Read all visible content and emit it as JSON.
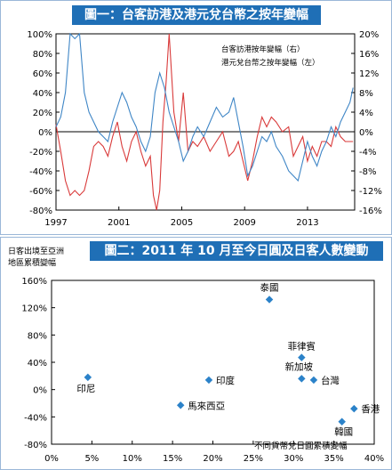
{
  "chart1": {
    "title": "圖一：台客訪港及港元兌台幣之按年變幅",
    "legend_right": "台客訪港按年變幅（右）",
    "legend_left": "港元兌台幣之按年變幅（左）"
  },
  "chart2": {
    "title": "圖二：2011 年 10 月至今日圓及日客人數變動",
    "ylabel_line1": "日客出境至亞洲",
    "ylabel_line2": "地區累積變幅",
    "xlabel": "不同貨幣兌日圓累積變幅"
  },
  "chart_data": [
    {
      "type": "line",
      "title": "圖一：台客訪港及港元兌台幣之按年變幅",
      "x_ticks": [
        "1997",
        "2001",
        "2005",
        "2009",
        "2013"
      ],
      "xlim": [
        1997,
        2016
      ],
      "y_left_ticks": [
        "100%",
        "80%",
        "60%",
        "40%",
        "20%",
        "0%",
        "-20%",
        "-40%",
        "-60%",
        "-80%"
      ],
      "y_left_lim": [
        -80,
        100
      ],
      "y_right_ticks": [
        "20%",
        "16%",
        "12%",
        "8%",
        "4%",
        "0%",
        "-4%",
        "-8%",
        "-12%",
        "-16%"
      ],
      "y_right_lim": [
        -16,
        20
      ],
      "colors": {
        "visitors": "#d93a3a",
        "fx": "#3f86c6"
      },
      "series": [
        {
          "name": "台客訪港按年變幅（右）",
          "axis": "right",
          "points": [
            [
              1997.0,
              1.5
            ],
            [
              1997.3,
              -4
            ],
            [
              1997.6,
              -10
            ],
            [
              1997.9,
              -13
            ],
            [
              1998.2,
              -12
            ],
            [
              1998.5,
              -13
            ],
            [
              1998.8,
              -12
            ],
            [
              1999.1,
              -8
            ],
            [
              1999.4,
              -3
            ],
            [
              1999.7,
              -2
            ],
            [
              2000.0,
              -3
            ],
            [
              2000.3,
              -5
            ],
            [
              2000.6,
              -1
            ],
            [
              2000.9,
              2
            ],
            [
              2001.2,
              -3
            ],
            [
              2001.5,
              -6
            ],
            [
              2001.8,
              -2
            ],
            [
              2002.1,
              0
            ],
            [
              2002.4,
              -4
            ],
            [
              2002.7,
              -7
            ],
            [
              2003.0,
              -5
            ],
            [
              2003.2,
              -13
            ],
            [
              2003.4,
              -16
            ],
            [
              2003.6,
              -12
            ],
            [
              2003.8,
              2
            ],
            [
              2004.0,
              10
            ],
            [
              2004.2,
              20
            ],
            [
              2004.5,
              4
            ],
            [
              2004.8,
              -2
            ],
            [
              2005.1,
              8
            ],
            [
              2005.4,
              -4
            ],
            [
              2005.7,
              -2
            ],
            [
              2006.0,
              -3
            ],
            [
              2006.4,
              -1
            ],
            [
              2006.8,
              -4
            ],
            [
              2007.2,
              -2
            ],
            [
              2007.6,
              0
            ],
            [
              2008.0,
              -5
            ],
            [
              2008.3,
              -4
            ],
            [
              2008.6,
              -2
            ],
            [
              2008.9,
              -6
            ],
            [
              2009.2,
              -10
            ],
            [
              2009.5,
              -6
            ],
            [
              2009.8,
              -1
            ],
            [
              2010.1,
              3
            ],
            [
              2010.4,
              1
            ],
            [
              2010.7,
              3
            ],
            [
              2011.0,
              2
            ],
            [
              2011.4,
              0
            ],
            [
              2011.8,
              1
            ],
            [
              2012.1,
              -5
            ],
            [
              2012.4,
              -3
            ],
            [
              2012.7,
              -1
            ],
            [
              2013.0,
              -6
            ],
            [
              2013.3,
              -3
            ],
            [
              2013.6,
              -5
            ],
            [
              2013.9,
              -2
            ],
            [
              2014.2,
              -2
            ],
            [
              2014.5,
              -3
            ],
            [
              2014.8,
              1
            ],
            [
              2015.1,
              -1
            ],
            [
              2015.4,
              -2
            ],
            [
              2015.7,
              -2
            ],
            [
              2015.9,
              -2
            ]
          ]
        },
        {
          "name": "港元兌台幣之按年變幅（左）",
          "axis": "left",
          "points": [
            [
              1997.0,
              5
            ],
            [
              1997.3,
              15
            ],
            [
              1997.6,
              40
            ],
            [
              1997.9,
              100
            ],
            [
              1998.2,
              95
            ],
            [
              1998.5,
              100
            ],
            [
              1998.8,
              40
            ],
            [
              1999.1,
              20
            ],
            [
              1999.4,
              10
            ],
            [
              1999.7,
              0
            ],
            [
              2000.0,
              -5
            ],
            [
              2000.3,
              -10
            ],
            [
              2000.6,
              10
            ],
            [
              2000.9,
              25
            ],
            [
              2001.2,
              40
            ],
            [
              2001.5,
              30
            ],
            [
              2001.8,
              15
            ],
            [
              2002.1,
              5
            ],
            [
              2002.4,
              -10
            ],
            [
              2002.7,
              -20
            ],
            [
              2003.0,
              -5
            ],
            [
              2003.3,
              40
            ],
            [
              2003.6,
              60
            ],
            [
              2003.9,
              45
            ],
            [
              2004.2,
              20
            ],
            [
              2004.5,
              5
            ],
            [
              2004.8,
              -10
            ],
            [
              2005.1,
              -30
            ],
            [
              2005.4,
              -20
            ],
            [
              2005.7,
              -5
            ],
            [
              2006.0,
              5
            ],
            [
              2006.4,
              -5
            ],
            [
              2006.8,
              10
            ],
            [
              2007.2,
              25
            ],
            [
              2007.6,
              15
            ],
            [
              2008.0,
              20
            ],
            [
              2008.3,
              35
            ],
            [
              2008.6,
              10
            ],
            [
              2008.9,
              -15
            ],
            [
              2009.2,
              -45
            ],
            [
              2009.5,
              -35
            ],
            [
              2009.8,
              -20
            ],
            [
              2010.1,
              -5
            ],
            [
              2010.4,
              -10
            ],
            [
              2010.7,
              0
            ],
            [
              2011.0,
              -15
            ],
            [
              2011.4,
              -25
            ],
            [
              2011.8,
              -40
            ],
            [
              2012.1,
              -45
            ],
            [
              2012.4,
              -50
            ],
            [
              2012.7,
              -30
            ],
            [
              2013.0,
              -10
            ],
            [
              2013.3,
              -25
            ],
            [
              2013.6,
              -35
            ],
            [
              2013.9,
              -20
            ],
            [
              2014.2,
              -10
            ],
            [
              2014.5,
              5
            ],
            [
              2014.8,
              -5
            ],
            [
              2015.1,
              10
            ],
            [
              2015.4,
              20
            ],
            [
              2015.7,
              30
            ],
            [
              2015.9,
              45
            ]
          ]
        }
      ]
    },
    {
      "type": "scatter",
      "title": "圖二：2011 年 10 月至今日圓及日客人數變動",
      "xlabel": "不同貨幣兌日圓累積變幅",
      "ylabel": "日客出境至亞洲地區累積變幅",
      "x_ticks": [
        "0%",
        "5%",
        "10%",
        "15%",
        "20%",
        "25%",
        "30%",
        "35%",
        "40%"
      ],
      "y_ticks": [
        "160%",
        "120%",
        "80%",
        "40%",
        "0%",
        "-40%",
        "-80%"
      ],
      "xlim": [
        0,
        40
      ],
      "ylim": [
        -80,
        160
      ],
      "marker_color": "#2b82c9",
      "points": [
        {
          "label": "泰國",
          "x": 27,
          "y": 132
        },
        {
          "label": "菲律賓",
          "x": 31,
          "y": 47
        },
        {
          "label": "新加坡",
          "x": 31,
          "y": 16
        },
        {
          "label": "台灣",
          "x": 32.5,
          "y": 14
        },
        {
          "label": "印度",
          "x": 19.5,
          "y": 14
        },
        {
          "label": "印尼",
          "x": 4.5,
          "y": 18
        },
        {
          "label": "馬來西亞",
          "x": 16,
          "y": -23
        },
        {
          "label": "香港",
          "x": 37.5,
          "y": -28
        },
        {
          "label": "韓國",
          "x": 36,
          "y": -47
        }
      ]
    }
  ]
}
